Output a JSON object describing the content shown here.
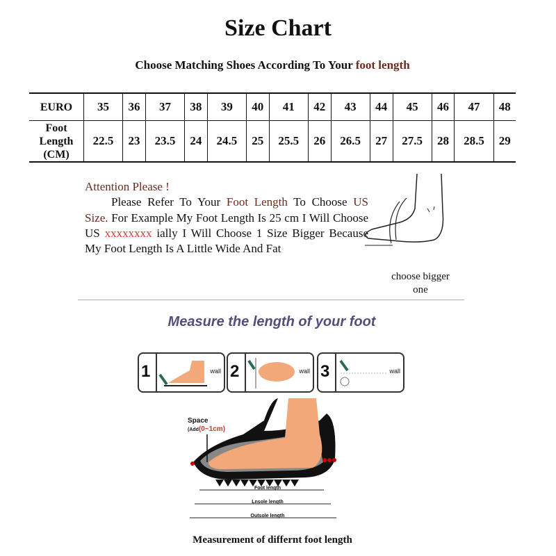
{
  "title": "Size Chart",
  "subtitle": {
    "prefix": "Choose Matching Shoes According To Your ",
    "highlight": "foot length"
  },
  "table": {
    "row_headers": [
      "EURO",
      "Foot Length (CM)"
    ],
    "euro": [
      "35",
      "36",
      "37",
      "38",
      "39",
      "40",
      "41",
      "42",
      "43",
      "44",
      "45",
      "46",
      "47",
      "48"
    ],
    "foot_length_cm": [
      "22.5",
      "23",
      "23.5",
      "24",
      "24.5",
      "25",
      "25.5",
      "26",
      "26.5",
      "27",
      "27.5",
      "28",
      "28.5",
      "29"
    ]
  },
  "note": {
    "heading": "Attention Please !",
    "p1": "Please Refer To Your ",
    "p2": "Foot Length",
    "p3": " To Choose ",
    "p4": "US Size.",
    "p5": " For Example My Foot Length Is 25 cm I Will Choose US ",
    "p6": "xxxxxxxx",
    "p7": " ially I Will Choose 1 Size Bigger Because My Foot Length Is A Little Wide And Fat"
  },
  "choose_label": "choose bigger one",
  "measure_heading": "Measure the length of your foot",
  "steps": [
    {
      "num": "1",
      "wall": "wall"
    },
    {
      "num": "2",
      "wall": "wall"
    },
    {
      "num": "3",
      "wall": "wall"
    }
  ],
  "diagram": {
    "space": "Space",
    "add": "(Add",
    "add_range": "(0~1cm)",
    "foot_length": "Foot length",
    "insole_length": "Lnsole length",
    "outsole_length": "Outsole length"
  },
  "caption": "Measurement of differnt foot length",
  "colors": {
    "accent_brown": "#6b2a1f",
    "accent_red": "#d83a3a",
    "heading_purple": "#574a7d",
    "skin": "#f2a878"
  }
}
